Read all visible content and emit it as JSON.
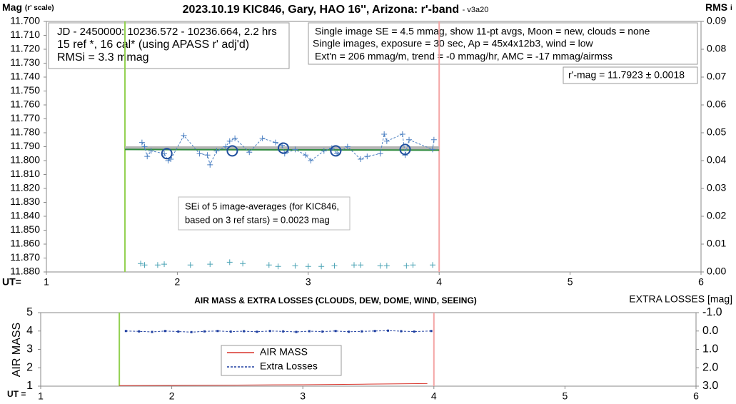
{
  "chart_data": [
    {
      "type": "scatter",
      "title": "2023.10.19 KIC846, Gary, HAO 16'', Arizona: r'-band",
      "version_label": "- v3a20",
      "y_label": "Mag",
      "y_label_note": "(r' scale)",
      "y2_label": "RMS",
      "y2_label_note": "i",
      "x_label": "UT=",
      "xlim": [
        1,
        6
      ],
      "xticks": [
        1,
        2,
        3,
        4,
        5,
        6
      ],
      "ylim": [
        11.88,
        11.7
      ],
      "yticks": [
        {
          "value": 11.7,
          "label": "11.700"
        },
        {
          "value": 11.71,
          "label": "11.710"
        },
        {
          "value": 11.72,
          "label": "11.720"
        },
        {
          "value": 11.73,
          "label": "11.730"
        },
        {
          "value": 11.74,
          "label": "11.740"
        },
        {
          "value": 11.75,
          "label": "11.750"
        },
        {
          "value": 11.76,
          "label": "11.760"
        },
        {
          "value": 11.77,
          "label": "11.770"
        },
        {
          "value": 11.78,
          "label": "11.780"
        },
        {
          "value": 11.79,
          "label": "11.790"
        },
        {
          "value": 11.8,
          "label": "11.800"
        },
        {
          "value": 11.81,
          "label": "11.810"
        },
        {
          "value": 11.82,
          "label": "11.820"
        },
        {
          "value": 11.83,
          "label": "11.830"
        },
        {
          "value": 11.84,
          "label": "11.840"
        },
        {
          "value": 11.85,
          "label": "11.850"
        },
        {
          "value": 11.86,
          "label": "11.860"
        },
        {
          "value": 11.87,
          "label": "11.870"
        },
        {
          "value": 11.88,
          "label": "11.880"
        }
      ],
      "y2lim": [
        0,
        0.09
      ],
      "y2ticks": [
        {
          "value": 0,
          "label": "0.00"
        },
        0.01,
        0.02,
        0.03,
        0.04,
        0.05,
        0.06,
        0.07,
        0.08,
        0.09
      ],
      "grid": false,
      "vlines": {
        "x": [
          1.6,
          4.0
        ],
        "colors": [
          "#92d050",
          "#f4a6a6"
        ]
      },
      "series": [
        {
          "color": "#b4b4b4",
          "line": "solid",
          "width": 5,
          "marker": null,
          "x": [
            1.6,
            4.0
          ],
          "values": [
            11.791,
            11.791
          ]
        },
        {
          "color": "#2e8b3e",
          "line": "solid",
          "width": 2,
          "marker": null,
          "x": [
            1.6,
            4.0
          ],
          "values": [
            11.792,
            11.7925
          ]
        },
        {
          "color": "#4a7fc1",
          "line": "dashed",
          "width": 1,
          "marker": "plus",
          "x": [
            1.73,
            1.75,
            1.77,
            1.8,
            1.9,
            1.93,
            1.95,
            2.05,
            2.17,
            2.23,
            2.25,
            2.3,
            2.37,
            2.4,
            2.44,
            2.55,
            2.65,
            2.75,
            2.8,
            2.82,
            2.9,
            2.98,
            3.02,
            3.12,
            3.18,
            3.22,
            3.3,
            3.4,
            3.45,
            3.55,
            3.58,
            3.6,
            3.72,
            3.74,
            3.77,
            3.95,
            3.96
          ],
          "values": [
            11.787,
            11.79,
            11.797,
            11.793,
            11.795,
            11.8,
            11.799,
            11.782,
            11.795,
            11.796,
            11.803,
            11.793,
            11.79,
            11.786,
            11.784,
            11.794,
            11.784,
            11.787,
            11.789,
            11.795,
            11.792,
            11.796,
            11.8,
            11.793,
            11.791,
            11.795,
            11.79,
            11.799,
            11.797,
            11.795,
            11.781,
            11.786,
            11.781,
            11.796,
            11.785,
            11.792,
            11.785
          ]
        },
        {
          "color": "#1f4e9c",
          "line": null,
          "width": 2,
          "marker": "circle",
          "x": [
            1.92,
            2.42,
            2.81,
            3.21,
            3.74
          ],
          "values": [
            11.795,
            11.793,
            11.791,
            11.793,
            11.792
          ]
        },
        {
          "color": "#4aa3b5",
          "line": null,
          "width": 1,
          "marker": "plus",
          "axis": "y2",
          "x": [
            1.72,
            1.75,
            1.85,
            1.9,
            2.1,
            2.25,
            2.4,
            2.5,
            2.7,
            2.77,
            2.9,
            3.0,
            3.1,
            3.2,
            3.35,
            3.4,
            3.55,
            3.6,
            3.75,
            3.8,
            3.95
          ],
          "values": [
            0.003,
            0.0025,
            0.0025,
            0.0028,
            0.0025,
            0.0028,
            0.0035,
            0.003,
            0.0025,
            0.002,
            0.0022,
            0.002,
            0.002,
            0.0022,
            0.0025,
            0.0025,
            0.0022,
            0.0022,
            0.0022,
            0.0025,
            0.0025
          ]
        }
      ],
      "annotations": [
        {
          "lines": [
            "JD - 2450000: 10236.572 - 10236.664, 2.2 hrs",
            "15 ref *, 16 cal* (using APASS r' adj'd)",
            "RMSi = 3.3 mmag"
          ]
        },
        {
          "lines": [
            "Single image SE = 4.5 mmag, show  11-pt avgs, Moon = new, clouds = none",
            "Single images, exposure = 30 sec, Ap = 45x4x12b3, wind = low",
            "Ext'n = 206 mmag/m, trend = -0  mmag/hr, AMC = -17 mmag/airmss"
          ]
        },
        {
          "lines": [
            "r'-mag = 11.7923 ± 0.0018"
          ]
        },
        {
          "lines": [
            "SEi of 5 image-averages (for KIC846,",
            "based on 3 ref stars) = 0.0023 mag"
          ]
        }
      ]
    },
    {
      "type": "line",
      "title": "AIR MASS & EXTRA LOSSES (CLOUDS, DEW, DOME, WIND, SEEING)",
      "y_label": "AIR MASS",
      "y2_label": "EXTRA LOSSES [mag]",
      "x_label": "UT =",
      "xlim": [
        1,
        6
      ],
      "xticks": [
        1,
        2,
        3,
        4,
        5,
        6
      ],
      "ylim": [
        1,
        5
      ],
      "yticks": [
        1,
        2,
        3,
        4,
        5
      ],
      "y2lim": [
        3.0,
        -1.0
      ],
      "y2ticks": [
        {
          "value": -1,
          "label": "-1.0"
        },
        {
          "value": 0,
          "label": "0.0"
        },
        {
          "value": 1,
          "label": "1.0"
        },
        {
          "value": 2,
          "label": "2.0"
        },
        {
          "value": 3,
          "label": "3.0"
        }
      ],
      "grid": false,
      "legend": "inside-center",
      "vlines": {
        "x": [
          1.6,
          4.0
        ],
        "colors": [
          "#92d050",
          "#f4a6a6"
        ]
      },
      "series": [
        {
          "name": "AIR MASS",
          "color": "#d9342b",
          "line": "solid",
          "width": 1,
          "marker": null,
          "x": [
            1.6,
            2.0,
            2.5,
            3.0,
            3.5,
            3.95
          ],
          "values": [
            1.03,
            1.04,
            1.06,
            1.08,
            1.11,
            1.14
          ]
        },
        {
          "name": "Extra Losses",
          "color": "#1f3fa0",
          "line": "dashed",
          "width": 1,
          "marker": "dot",
          "axis": "y2",
          "x": [
            1.65,
            1.75,
            1.85,
            1.95,
            2.05,
            2.15,
            2.25,
            2.35,
            2.45,
            2.55,
            2.65,
            2.75,
            2.85,
            2.95,
            3.05,
            3.15,
            3.25,
            3.35,
            3.45,
            3.55,
            3.65,
            3.75,
            3.85,
            3.98
          ],
          "values": [
            0.0,
            0.02,
            0.05,
            0.0,
            0.03,
            0.06,
            0.02,
            0.0,
            0.03,
            0.01,
            0.04,
            0.0,
            0.02,
            0.05,
            0.01,
            0.03,
            0.0,
            0.04,
            0.02,
            0.0,
            -0.02,
            0.01,
            0.03,
            0.0
          ]
        }
      ]
    }
  ]
}
